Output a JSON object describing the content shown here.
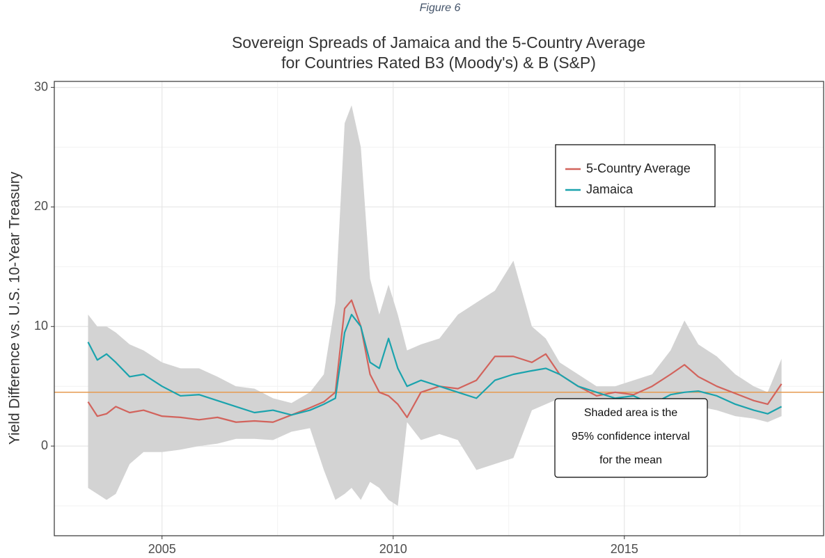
{
  "chart_data": {
    "type": "line",
    "caption": "Figure 6",
    "title": [
      "Sovereign Spreads of Jamaica and the 5-Country Average",
      "for Countries Rated B3 (Moody's) & B (S&P)"
    ],
    "ylabel": "Yield Difference vs. U.S. 10-Year Treasury",
    "x": [
      2003.4,
      2003.6,
      2003.8,
      2004.0,
      2004.3,
      2004.6,
      2005.0,
      2005.4,
      2005.8,
      2006.2,
      2006.6,
      2007.0,
      2007.4,
      2007.8,
      2008.2,
      2008.5,
      2008.75,
      2008.95,
      2009.1,
      2009.3,
      2009.5,
      2009.7,
      2009.9,
      2010.1,
      2010.3,
      2010.6,
      2011.0,
      2011.4,
      2011.8,
      2012.2,
      2012.6,
      2013.0,
      2013.3,
      2013.6,
      2014.0,
      2014.4,
      2014.8,
      2015.2,
      2015.6,
      2016.0,
      2016.3,
      2016.6,
      2017.0,
      2017.4,
      2017.8,
      2018.1,
      2018.4
    ],
    "series": [
      {
        "name": "5-Country Average",
        "color": "#d2635c",
        "values": [
          3.7,
          2.5,
          2.7,
          3.3,
          2.8,
          3.0,
          2.5,
          2.4,
          2.2,
          2.4,
          2.0,
          2.1,
          2.0,
          2.6,
          3.2,
          3.7,
          4.5,
          11.5,
          12.2,
          10,
          6,
          4.5,
          4.2,
          3.5,
          2.4,
          4.5,
          5.0,
          4.8,
          5.5,
          7.5,
          7.5,
          7.0,
          7.7,
          6.0,
          5.0,
          4.2,
          4.5,
          4.3,
          5.0,
          6.0,
          6.8,
          5.8,
          5.0,
          4.4,
          3.8,
          3.5,
          5.2
        ]
      },
      {
        "name": "Jamaica",
        "color": "#1aa3ad",
        "values": [
          8.7,
          7.2,
          7.7,
          7.0,
          5.8,
          6.0,
          5.0,
          4.2,
          4.3,
          3.8,
          3.3,
          2.8,
          3.0,
          2.6,
          3.0,
          3.5,
          4.0,
          9.5,
          11.0,
          10,
          7,
          6.5,
          9.0,
          6.5,
          5.0,
          5.5,
          5.0,
          4.5,
          4.0,
          5.5,
          6.0,
          6.3,
          6.5,
          6.0,
          5.0,
          4.5,
          4.0,
          4.2,
          3.5,
          4.3,
          4.5,
          4.6,
          4.2,
          3.5,
          3.0,
          2.7,
          3.3
        ]
      }
    ],
    "band": {
      "color": "#d3d3d3",
      "upper": [
        11,
        10,
        10,
        9.5,
        8.5,
        8,
        7,
        6.5,
        6.5,
        5.8,
        5,
        4.8,
        4,
        3.6,
        4.5,
        6,
        12,
        27,
        28.5,
        25,
        14,
        11,
        13.5,
        11,
        8,
        8.5,
        9,
        11,
        12,
        13,
        15.5,
        10,
        9,
        7,
        6,
        5,
        5,
        5.5,
        6,
        8,
        10.5,
        8.5,
        7.5,
        6,
        5,
        4.5,
        7.3
      ],
      "lower": [
        -3.5,
        -4,
        -4.5,
        -4,
        -1.5,
        -0.5,
        -0.5,
        -0.3,
        0,
        0.2,
        0.6,
        0.6,
        0.5,
        1.2,
        1.5,
        -2,
        -4.5,
        -4,
        -3.5,
        -4.5,
        -3,
        -3.5,
        -4.5,
        -5,
        2,
        0.5,
        1,
        0.5,
        -2,
        -1.5,
        -1,
        3,
        3.5,
        4,
        3.5,
        3.2,
        3.5,
        3.2,
        3,
        3,
        3.5,
        3.3,
        3,
        2.5,
        2.3,
        2,
        2.5
      ]
    },
    "hline": {
      "value": 4.5,
      "color": "#e69a4f"
    },
    "annotation": [
      "Shaded area is the",
      "95% confidence interval",
      "for the mean"
    ],
    "xlim": [
      2002.67,
      2019.31
    ],
    "xticks": [
      2005,
      2010,
      2015
    ],
    "minor_xticks": [
      2007.5,
      2012.5,
      2017.5
    ],
    "ylim": [
      -7.5,
      30.5
    ],
    "yticks": [
      0,
      10,
      20,
      30
    ],
    "minor_yticks": [
      -5,
      5,
      15,
      25
    ],
    "grid": true
  }
}
